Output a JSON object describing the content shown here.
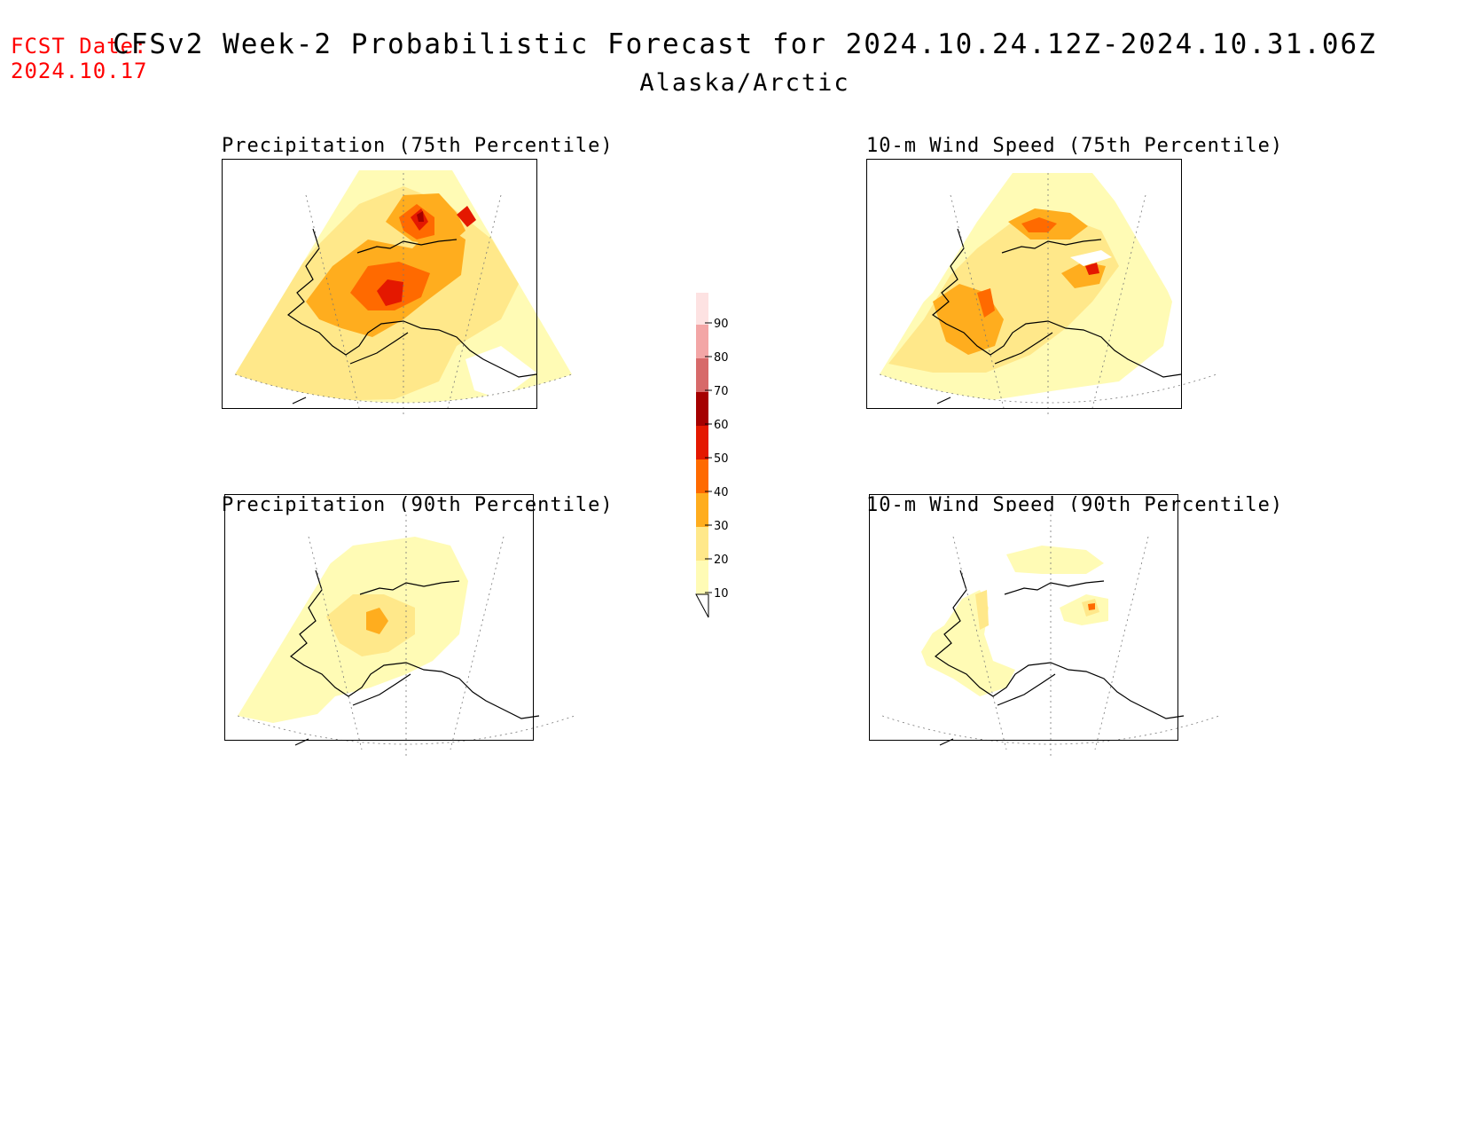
{
  "header": {
    "fcst_label": "FCST Date:",
    "fcst_date": "2024.10.17",
    "title": "CFSv2 Week-2 Probabilistic Forecast for 2024.10.24.12Z-2024.10.31.06Z",
    "subtitle": "Alaska/Arctic"
  },
  "panels": [
    {
      "title": "Precipitation (75th Percentile)"
    },
    {
      "title": "10-m Wind Speed (75th Percentile)"
    },
    {
      "title": "Precipitation (90th Percentile)"
    },
    {
      "title": "10-m Wind Speed (90th Percentile)"
    }
  ],
  "colorbar": {
    "ticks": [
      "10",
      "20",
      "30",
      "40",
      "50",
      "60",
      "70",
      "80",
      "90"
    ],
    "colors": [
      "#fffbb5",
      "#ffe88a",
      "#ffad1e",
      "#ff6a00",
      "#e41800",
      "#a50000",
      "#d76a6a",
      "#f3a6a6",
      "#fde2e2"
    ]
  },
  "chart_data": {
    "type": "heatmap",
    "legend_values": [
      10,
      20,
      30,
      40,
      50,
      60,
      70,
      80,
      90
    ],
    "panels": [
      "Precipitation (75th Percentile)",
      "10-m Wind Speed (75th Percentile)",
      "Precipitation (90th Percentile)",
      "10-m Wind Speed (90th Percentile)"
    ]
  }
}
